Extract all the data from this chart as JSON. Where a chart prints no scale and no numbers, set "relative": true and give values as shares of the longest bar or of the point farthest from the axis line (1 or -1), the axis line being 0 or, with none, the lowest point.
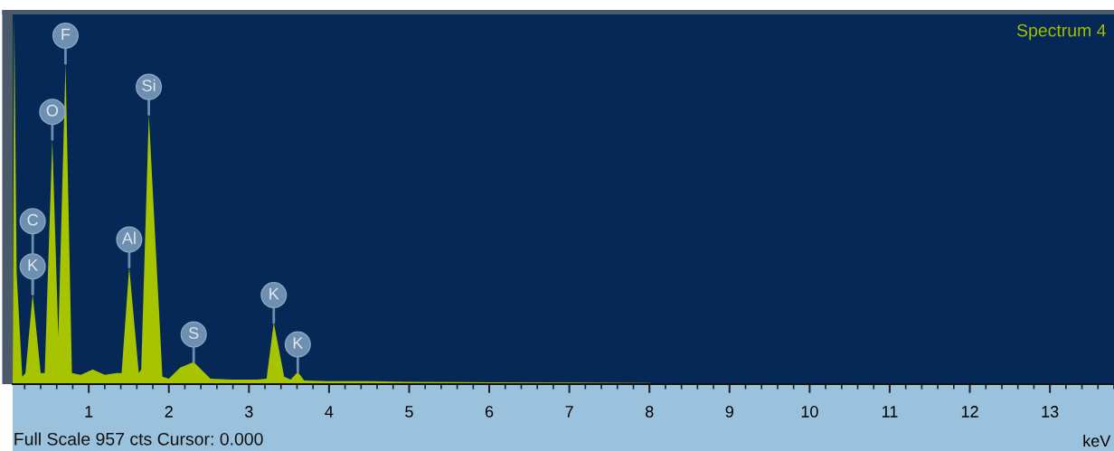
{
  "chart_data": {
    "type": "area",
    "title": "Spectrum 4",
    "xlabel": "keV",
    "relative": true,
    "x": [
      0.05,
      0.07,
      0.1,
      0.17,
      0.21,
      0.3,
      0.4,
      0.45,
      0.545,
      0.62,
      0.71,
      0.79,
      0.9,
      1.05,
      1.2,
      1.35,
      1.41,
      1.505,
      1.625,
      1.655,
      1.75,
      1.92,
      2.0,
      2.14,
      2.31,
      2.52,
      2.8,
      3.1,
      3.22,
      3.31,
      3.44,
      3.52,
      3.61,
      3.69,
      4.0,
      4.5,
      5.0,
      6.0,
      7.0,
      8.0,
      8.2,
      13.8
    ],
    "series": [
      {
        "color": "#a6c400",
        "values": [
          0.0,
          1.0,
          0.3,
          0.02,
          0.03,
          0.245,
          0.03,
          0.03,
          0.665,
          0.13,
          0.872,
          0.03,
          0.025,
          0.04,
          0.025,
          0.03,
          0.03,
          0.318,
          0.03,
          0.04,
          0.733,
          0.02,
          0.015,
          0.045,
          0.06,
          0.015,
          0.012,
          0.012,
          0.015,
          0.167,
          0.02,
          0.012,
          0.033,
          0.01,
          0.008,
          0.008,
          0.006,
          0.005,
          0.004,
          0.003,
          0.0,
          0.0
        ]
      }
    ],
    "xlim": [
      0.05,
      13.8
    ],
    "xticks": [
      1,
      2,
      3,
      4,
      5,
      6,
      7,
      8,
      9,
      10,
      11,
      12,
      13
    ],
    "grid": false,
    "annotations": [
      {
        "text": "F",
        "x": 0.71,
        "y": 0.872
      },
      {
        "text": "O",
        "x": 0.545,
        "y": 0.665
      },
      {
        "text": "Si",
        "x": 1.75,
        "y": 0.733
      },
      {
        "text": "K",
        "x": 0.3,
        "y": 0.245
      },
      {
        "text": "C",
        "x": 0.3,
        "y": 0.245
      },
      {
        "text": "Al",
        "x": 1.505,
        "y": 0.318
      },
      {
        "text": "S",
        "x": 2.31,
        "y": 0.06
      },
      {
        "text": "K",
        "x": 3.31,
        "y": 0.167
      },
      {
        "text": "K",
        "x": 3.61,
        "y": 0.033
      },
      "Full Scale 957 cts Cursor: 0.000"
    ]
  }
}
